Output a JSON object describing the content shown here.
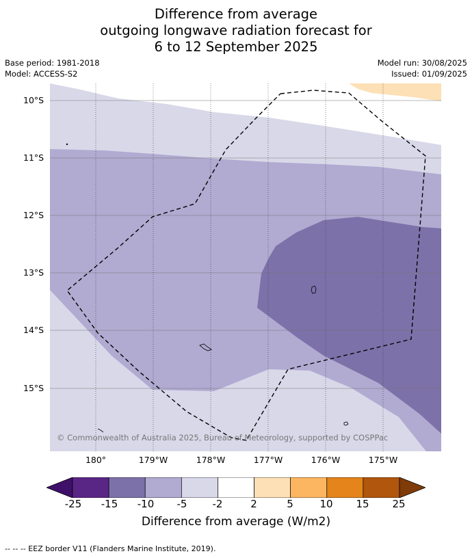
{
  "title": {
    "line1": "Difference from average",
    "line2": "outgoing longwave radiation forecast for",
    "line3": "6 to 12 September 2025"
  },
  "meta": {
    "base_period": "Base period: 1981-2018",
    "model": "Model: ACCESS-S2",
    "model_run": "Model run: 30/08/2025",
    "issued": "Issued: 01/09/2025"
  },
  "lat_labels": [
    "10°S",
    "11°S",
    "12°S",
    "13°S",
    "14°S",
    "15°S"
  ],
  "lon_labels": [
    "180°",
    "179°W",
    "178°W",
    "177°W",
    "176°W",
    "175°W"
  ],
  "copyright": "© Commonwealth of Australia 2025, Bureau of Meteorology, supported by COSPPac",
  "colorbar": {
    "ticks": [
      "-25",
      "-15",
      "-10",
      "-5",
      "-2",
      "2",
      "5",
      "10",
      "15",
      "25"
    ],
    "colors": [
      "#3f1069",
      "#5a2686",
      "#7d71a9",
      "#b1aad1",
      "#d8d8e9",
      "#ffffff",
      "#fde0b6",
      "#fcb661",
      "#e4841a",
      "#b0560d",
      "#7f3b08"
    ],
    "label": "Difference from average (W/m2)"
  },
  "footer": "-- -- -- EEZ border V11 (Flanders Marine Institute, 2019)."
}
